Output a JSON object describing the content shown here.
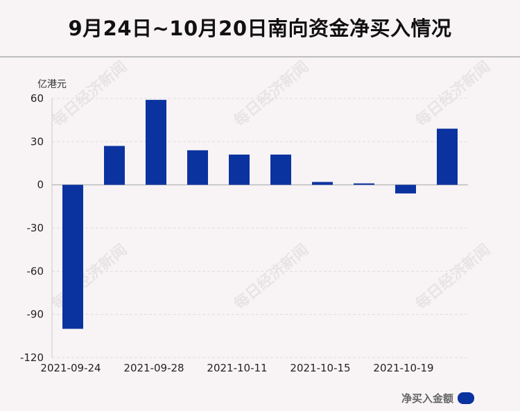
{
  "title": "9月24日~10月20日南向资金净买入情况",
  "watermark_text": "每日经济新闻",
  "chart_data": {
    "type": "bar",
    "title": "9月24日~10月20日南向资金净买入情况",
    "ylabel": "亿港元",
    "xlabel": "",
    "ylim": [
      -120,
      60
    ],
    "yticks": [
      "60",
      "30",
      "0",
      "-30",
      "-60",
      "-90",
      "-120"
    ],
    "ytick_values": [
      60,
      30,
      0,
      -30,
      -60,
      -90,
      -120
    ],
    "xtick_labels": [
      "2021-09-24",
      "2021-09-28",
      "2021-10-11",
      "2021-10-15",
      "2021-10-19"
    ],
    "xtick_category_index": [
      0,
      2,
      4,
      6,
      8
    ],
    "categories": [
      "2021-09-24",
      "",
      "2021-09-28",
      "",
      "2021-10-11",
      "",
      "2021-10-15",
      "",
      "2021-10-19",
      ""
    ],
    "series": [
      {
        "name": "净买入金额",
        "color": "#0b33a0",
        "values": [
          -100,
          27,
          59,
          24,
          21,
          21,
          2,
          1,
          -6,
          39
        ]
      }
    ],
    "grid": true,
    "legend_position": "bottom-right"
  }
}
